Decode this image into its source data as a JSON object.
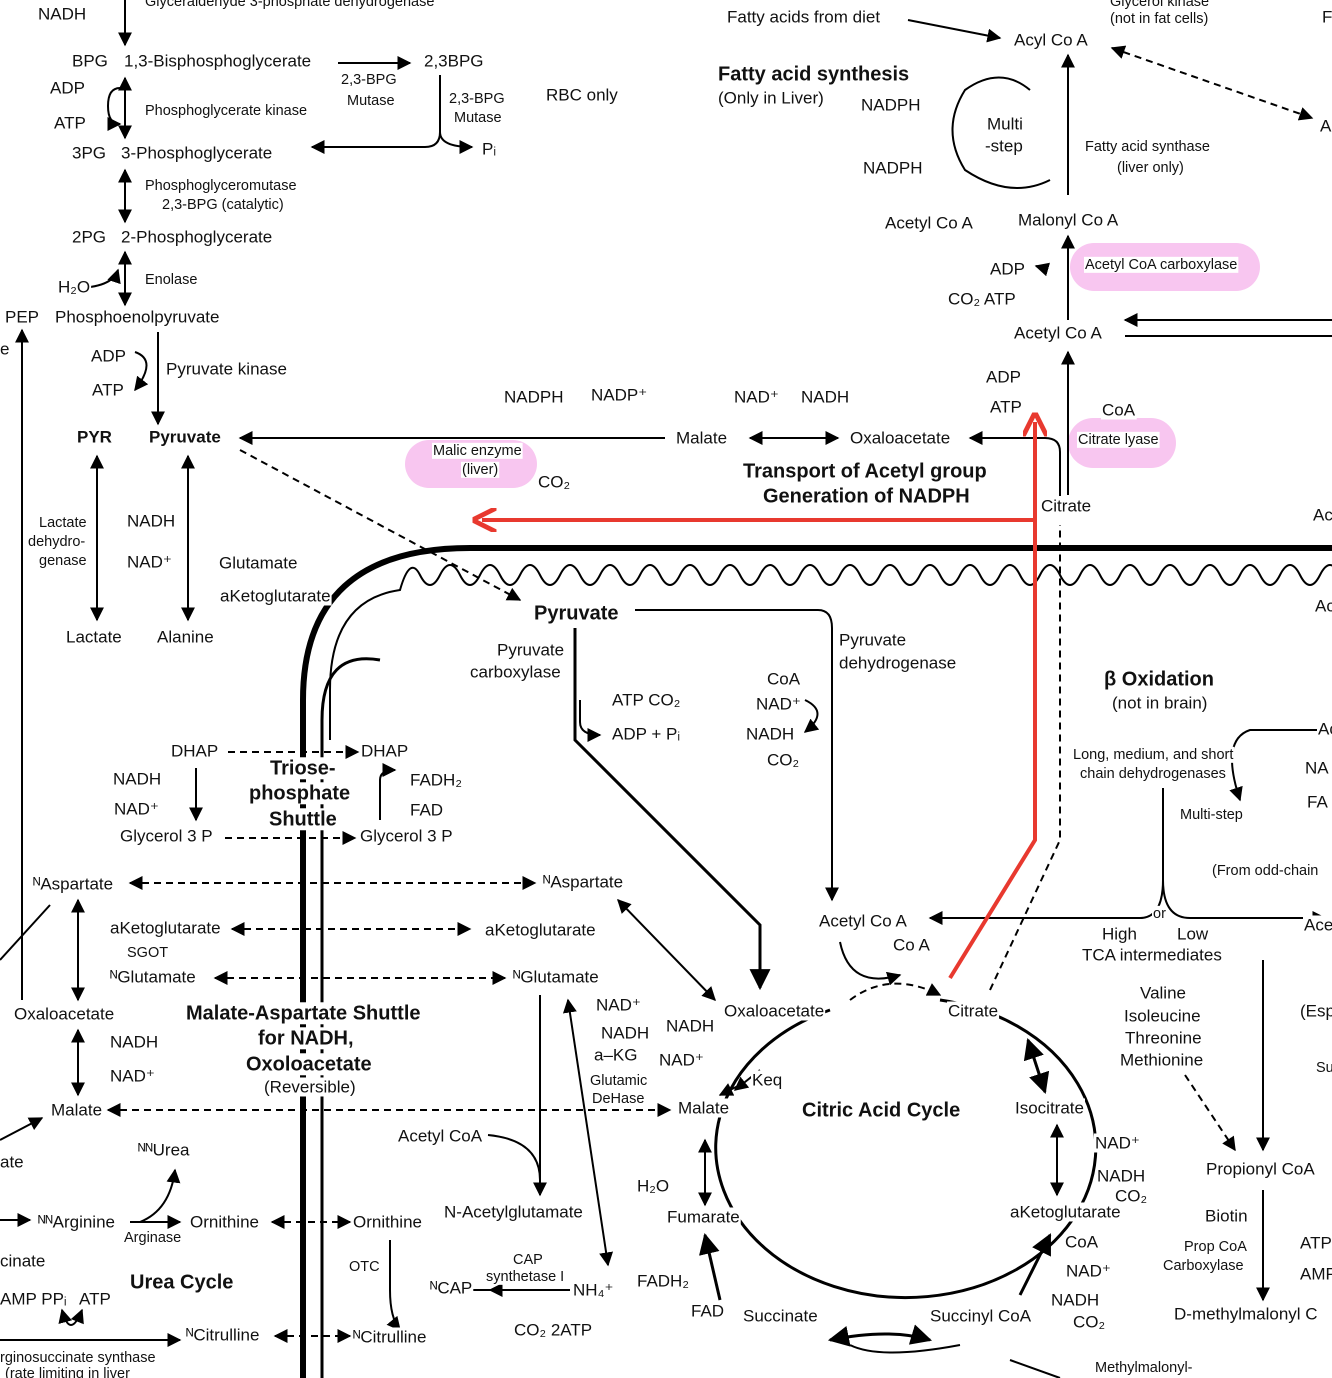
{
  "labels": [
    "NADH",
    "Glyceraldehyde 3-phosphate dehydrogenase",
    "BPG",
    "1,3-Bisphosphoglycerate",
    "2,3BPG",
    "2,3-BPG",
    "Mutase",
    "2,3-BPG",
    "Mutase",
    "RBC only",
    "ADP",
    "ATP",
    "Phosphoglycerate kinase",
    "Pᵢ",
    "3PG",
    "3-Phosphoglycerate",
    "Phosphoglyceromutase",
    "2,3-BPG (catalytic)",
    "2PG",
    "2-Phosphoglycerate",
    "H₂O",
    "Enolase",
    "PEP",
    "Phosphoenolpyruvate",
    "ADP",
    "ATP",
    "Pyruvate kinase",
    "PYR",
    "Pyruvate",
    "NADPH",
    "NADP⁺",
    "NAD⁺",
    "NADH",
    "Malate",
    "Oxaloacetate",
    "Malic enzyme",
    "(liver)",
    "CO₂",
    "Transport of Acetyl group",
    "Generation of NADPH",
    "Lactate",
    "dehydro-",
    "genase",
    "NADH",
    "NAD⁺",
    "Glutamate",
    "aKetoglutarate",
    "Lactate",
    "Alanine",
    "Pyruvate",
    "Pyruvate",
    "carboxylase",
    "Pyruvate",
    "dehydrogenase",
    "ATP CO₂",
    "ADP + Pᵢ",
    "CoA",
    "NAD⁺",
    "NADH",
    "CO₂",
    "DHAP",
    "DHAP",
    "Triose-",
    "phosphate",
    "Shuttle",
    "NADH",
    "NAD⁺",
    "Glycerol 3 P",
    "FADH₂",
    "FAD",
    "Glycerol 3 P",
    "Fatty acids from diet",
    "Acyl Co A",
    "Glycerol kinase",
    "(not in fat cells)",
    "Fatty acid synthesis",
    "(Only in Liver)",
    "NADPH",
    "NADPH",
    "Multi",
    "-step",
    "Fatty acid synthase",
    "(liver only)",
    "Acetyl Co A",
    "Malonyl Co A",
    "Acetyl CoA carboxylase",
    "ADP",
    "CO₂  ATP",
    "Acetyl Co A",
    "ADP",
    "ATP",
    "CoA",
    "Citrate lyase",
    "Citrate",
    "β Oxidation",
    "(not in brain)",
    "Long, medium, and short",
    "chain dehydrogenases",
    "Multi-step",
    "(From odd-chain",
    "Acetyl Co A",
    "Co A",
    "or",
    "High",
    "Low",
    "TCA intermediates",
    "Valine",
    "Isoleucine",
    "Threonine",
    "Methionine",
    "Propionyl CoA",
    "Biotin",
    "Prop CoA",
    "Carboxylase",
    "ATP",
    "AMP",
    "D-methylmalonyl C",
    "Methylmalonyl-",
    "ᴺAspartate",
    "ᴺAspartate",
    "aKetoglutarate",
    "aKetoglutarate",
    "SGOT",
    "ᴺGlutamate",
    "ᴺGlutamate",
    "Oxaloacetate",
    "NADH",
    "NAD⁺",
    "Malate",
    "Malate-Aspartate Shuttle",
    "for NADH,",
    "Oxoloacetate",
    "(Reversible)",
    "NAD⁺",
    "NADH",
    "a–KG",
    "Glutamic",
    "DeHase",
    "Oxaloacetate",
    "Citrate",
    "NADH",
    "NAD⁺",
    "Keq",
    "Malate",
    "Citric Acid Cycle",
    "Isocitrate",
    "NAD⁺",
    "NADH",
    "CO₂",
    "aKetoglutarate",
    "Acetyl CoA",
    "ᴺᴺUrea",
    "N-Acetylglutamate",
    "H₂O",
    "Fumarate",
    "ate",
    "ᴺᴺArginine",
    "Ornithine",
    "Ornithine",
    "Arginase",
    "cinate",
    "Urea Cycle",
    "OTC",
    "ᴺCAP",
    "CAP",
    "synthetase I",
    "NH₄⁺",
    "AMP PPᵢ",
    "ATP",
    "ᴺCitrulline",
    "ᴺCitrulline",
    "CO₂ 2ATP",
    "FADH₂",
    "FAD",
    "Succinate",
    "Succinyl CoA",
    "CoA",
    "NAD⁺",
    "NADH",
    "CO₂",
    "rginosuccinate synthase",
    "(rate limiting in liver",
    "F",
    "A",
    "Ac",
    "Ac",
    "Ac",
    "NA",
    "FA",
    "Ace",
    "(Esp",
    "Su",
    "e"
  ]
}
